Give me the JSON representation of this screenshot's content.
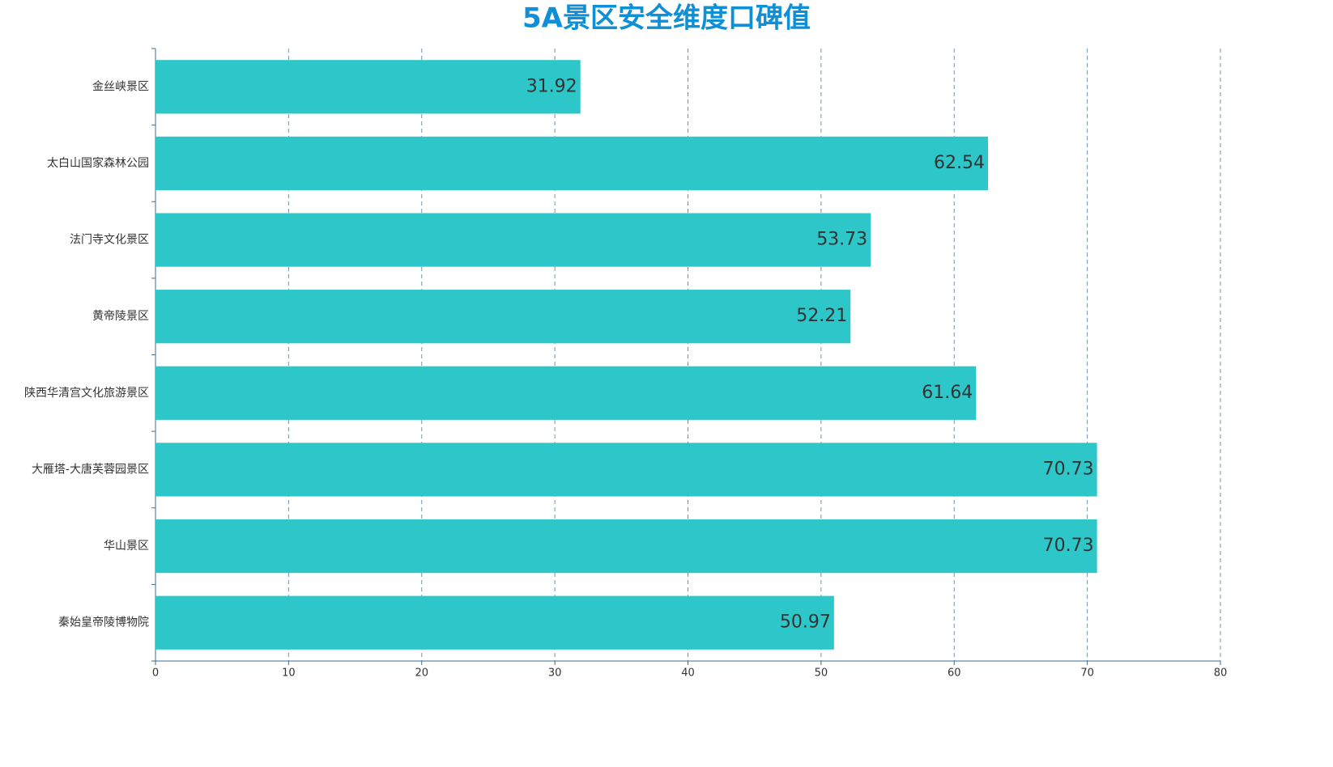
{
  "chart_data": {
    "type": "bar",
    "orientation": "horizontal",
    "title": "5A景区安全维度口碑值",
    "categories": [
      "金丝峡景区",
      "太白山国家森林公园",
      "法门寺文化景区",
      "黄帝陵景区",
      "陕西华清宫文化旅游景区",
      "大雁塔-大唐芙蓉园景区",
      "华山景区",
      "秦始皇帝陵博物院"
    ],
    "values": [
      31.92,
      62.54,
      53.73,
      52.21,
      61.64,
      70.73,
      70.73,
      50.97
    ],
    "color": "#2ec7c9",
    "xlim": [
      0,
      80
    ],
    "xticks": [
      0,
      10,
      20,
      30,
      40,
      50,
      60,
      70,
      80
    ],
    "grid": true
  }
}
